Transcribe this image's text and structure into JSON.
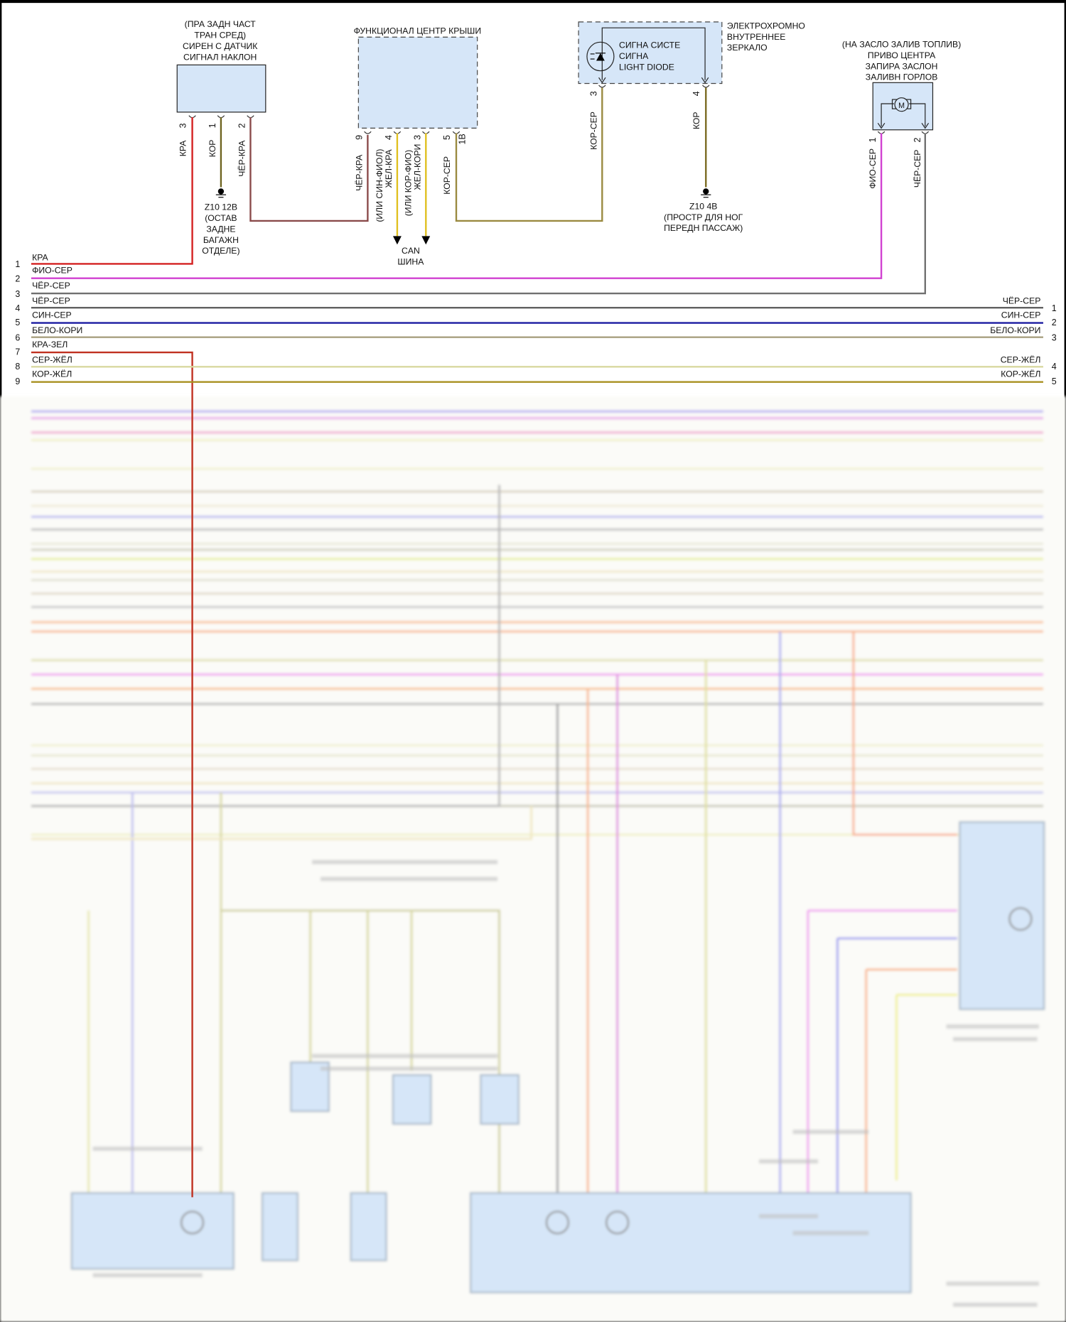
{
  "components": {
    "siren": {
      "title": [
        "(ПРА ЗАДН ЧАСТ",
        "ТРАН СРЕД)",
        "СИРЕН С ДАТЧИК",
        "СИГНАЛ НАКЛОН"
      ],
      "pins": [
        {
          "pin": "3",
          "wire": "КРА",
          "color": "#d42020"
        },
        {
          "pin": "1",
          "wire": "КОР",
          "color": "#6e6420"
        },
        {
          "pin": "2",
          "wire": "ЧЁР-КРА",
          "color": "#8a4a4a"
        }
      ],
      "ground": [
        "Z10 12В",
        "(ОСТАВ",
        "ЗАДНЕ",
        "БАГАЖН",
        "ОТДЕЛЕ)"
      ]
    },
    "roof": {
      "title": "ФУНКЦИОНАЛ ЦЕНТР КРЫШИ",
      "pins": [
        {
          "pin": "9",
          "wire": "ЧЁР-КРА",
          "color": "#8a4a4a"
        },
        {
          "pin": "4",
          "wire": "ЖЕЛ-КРА",
          "alt": "(ИЛИ СИН-ФИОЛ)",
          "color": "#e0c020"
        },
        {
          "pin": "3",
          "wire": "ЖЕЛ-КОРИ",
          "alt": "(ИЛИ КОР-ФИО)",
          "color": "#e0c020"
        },
        {
          "pin": "5",
          "wire": "КОР-СЕР",
          "color": "#9a8a40"
        }
      ],
      "extra_pin": "1В",
      "can_bus": [
        "CAN",
        "ШИНА"
      ]
    },
    "mirror": {
      "title": [
        "ЭЛЕКТРОХРОМНО",
        "ВНУТРЕННЕЕ",
        "ЗЕРКАЛО"
      ],
      "inner": [
        "СИГНА СИСТЕ",
        "СИГНА",
        "LIGHT DIODE"
      ],
      "pins": [
        {
          "pin": "3",
          "wire": "КОР-СЕР",
          "color": "#9a8a40"
        },
        {
          "pin": "4",
          "wire": "КОР",
          "color": "#7a6a20"
        }
      ],
      "ground": [
        "Z10 4В",
        "(ПРОСТР ДЛЯ НОГ",
        "ПЕРЕДН ПАССАЖ)"
      ]
    },
    "fuel_flap": {
      "title": [
        "(НА ЗАСЛО ЗАЛИВ ТОПЛИВ)",
        "ПРИВО ЦЕНТРА",
        "ЗАПИРА ЗАСЛОН",
        "ЗАЛИВН ГОРЛОВ"
      ],
      "motor": "M",
      "pins": [
        {
          "pin": "1",
          "wire": "ФИО-СЕР",
          "color": "#d040d0"
        },
        {
          "pin": "2",
          "wire": "ЧЁР-СЕР",
          "color": "#707070"
        }
      ]
    }
  },
  "harness_left": [
    {
      "num": "1",
      "label": "КРА",
      "color": "#d42020"
    },
    {
      "num": "2",
      "label": "ФИО-СЕР",
      "color": "#d040d0"
    },
    {
      "num": "3",
      "label": "ЧЁР-СЕР",
      "color": "#606060"
    },
    {
      "num": "4",
      "label": "ЧЁР-СЕР",
      "color": "#606060"
    },
    {
      "num": "5",
      "label": "СИН-СЕР",
      "color": "#1a1aa0"
    },
    {
      "num": "6",
      "label": "БЕЛО-КОРИ",
      "color": "#a8a080"
    },
    {
      "num": "7",
      "label": "КРА-ЗЕЛ",
      "color": "#c03020"
    },
    {
      "num": "8",
      "label": "СЕР-ЖЁЛ",
      "color": "#d8d8a0"
    },
    {
      "num": "9",
      "label": "КОР-ЖЁЛ",
      "color": "#a89020"
    }
  ],
  "harness_right": [
    {
      "num": "1",
      "label": "ЧЁР-СЕР"
    },
    {
      "num": "2",
      "label": "СИН-СЕР"
    },
    {
      "num": "3",
      "label": "БЕЛО-КОРИ"
    },
    {
      "num": "4",
      "label": "СЕР-ЖЁЛ"
    },
    {
      "num": "5",
      "label": "КОР-ЖЁЛ"
    }
  ],
  "colors": {
    "component_fill": "#d6e6f8",
    "frame": "#000000"
  }
}
